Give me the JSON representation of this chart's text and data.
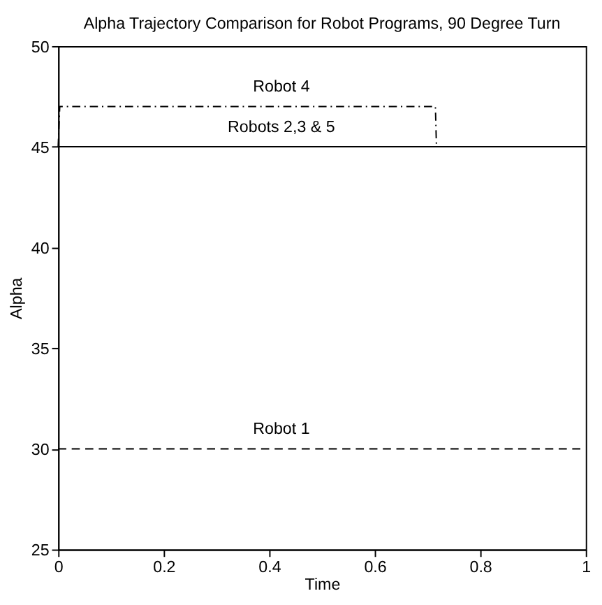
{
  "chart_data": {
    "type": "line",
    "title": "Alpha Trajectory Comparison for Robot Programs, 90 Degree Turn",
    "xlabel": "Time",
    "ylabel": "Alpha",
    "xlim": [
      0,
      1
    ],
    "xticks": [
      0,
      0.2,
      0.4,
      0.6,
      0.8,
      1
    ],
    "ylim": [
      25,
      50
    ],
    "yticks": [
      25,
      30,
      35,
      40,
      45,
      50
    ],
    "grid": false,
    "marker": "none",
    "series": [
      {
        "name": "Robots 2,3 & 5",
        "x": [
          0,
          1
        ],
        "values": [
          45,
          45
        ],
        "color": "#000000",
        "line_style": "solid"
      },
      {
        "name": "Robot 4",
        "x": [
          0,
          0.003,
          0.715,
          0.717
        ],
        "values": [
          45,
          47,
          47,
          45
        ],
        "color": "#000000",
        "line_style": "dashdot"
      },
      {
        "name": "Robot 1",
        "x": [
          0,
          1
        ],
        "values": [
          30,
          30
        ],
        "color": "#000000",
        "line_style": "dashed"
      }
    ]
  }
}
